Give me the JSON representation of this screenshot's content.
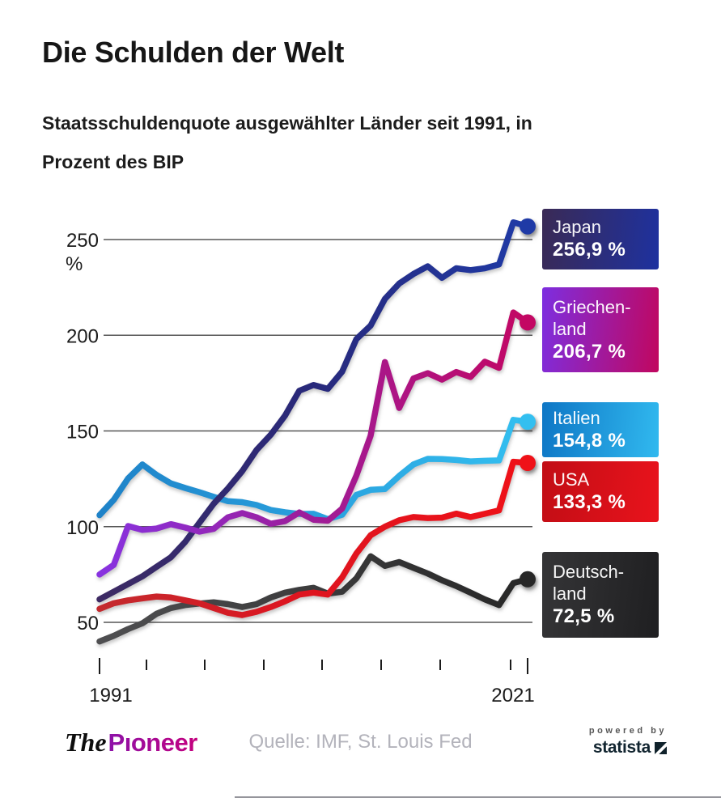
{
  "header": {
    "title": "Die Schulden der Welt",
    "subtitle": "Staatsschuldenquote ausgewählter Länder seit 1991, in\nProzent des BIP"
  },
  "chart_data": {
    "type": "line",
    "title": "Die Schulden der Welt",
    "subtitle": "Staatsschuldenquote ausgewählter Länder seit 1991, in Prozent des BIP",
    "x_start": 1991,
    "x_end": 2021,
    "x_axis": {
      "start_label": "1991",
      "end_label": "2021"
    },
    "y_axis": {
      "unit": "%",
      "ticks": [
        250,
        200,
        150,
        100,
        50
      ],
      "range": [
        35,
        265
      ],
      "grid": true
    },
    "legend_position": "right",
    "series": [
      {
        "id": "japan",
        "name": "Japan",
        "label": "Japan",
        "value_label": "256,9 %",
        "final_value": 256.9,
        "dot_color": "#1f3aa6",
        "box_gradient": [
          "#3a2a55",
          "#1e319f"
        ],
        "gradient_stops": [
          {
            "at": "0%",
            "color": "#3d2a63"
          },
          {
            "at": "50%",
            "color": "#28297b"
          },
          {
            "at": "100%",
            "color": "#1f3aa6"
          }
        ],
        "values": [
          62,
          66,
          70,
          74,
          79,
          84,
          92,
          102,
          112,
          120,
          129,
          140,
          148,
          158,
          171,
          174,
          172,
          181,
          198,
          205,
          219,
          227,
          232,
          236,
          230,
          235,
          234,
          235,
          237,
          259,
          256.9
        ]
      },
      {
        "id": "griechenland",
        "name": "Griechenland",
        "label": "Griechen-\nland",
        "value_label": "206,7 %",
        "final_value": 206.7,
        "dot_color": "#c30763",
        "box_gradient": [
          "#7d2ee0",
          "#c1075f"
        ],
        "gradient_stops": [
          {
            "at": "0%",
            "color": "#8833e0"
          },
          {
            "at": "45%",
            "color": "#9b1f9e"
          },
          {
            "at": "100%",
            "color": "#c30763"
          }
        ],
        "values": [
          75,
          80,
          100.3,
          98.3,
          99,
          101.3,
          99.5,
          97.4,
          98.9,
          104.9,
          107.1,
          104.9,
          101.5,
          102.9,
          107.4,
          103.6,
          103.1,
          109.4,
          126.7,
          147.5,
          186,
          162,
          177.4,
          180.2,
          176.8,
          180.8,
          178.2,
          186.2,
          183,
          211.9,
          206.7
        ]
      },
      {
        "id": "italien",
        "name": "Italien",
        "label": "Italien",
        "value_label": "154,8 %",
        "final_value": 154.8,
        "dot_color": "#33bff0",
        "box_gradient": [
          "#0e76c5",
          "#31b9ef"
        ],
        "gradient_stops": [
          {
            "at": "0%",
            "color": "#1e82c8"
          },
          {
            "at": "50%",
            "color": "#29a0dd"
          },
          {
            "at": "100%",
            "color": "#33bff0"
          }
        ],
        "values": [
          106,
          114,
          125.2,
          132.5,
          127,
          122.6,
          120.2,
          118,
          115.6,
          113.3,
          112.8,
          111.3,
          108.7,
          107.5,
          106.6,
          106.7,
          103.9,
          106.2,
          116.6,
          119.2,
          119.7,
          126.5,
          132.5,
          135.4,
          135.3,
          134.8,
          134.1,
          134.4,
          134.6,
          155.8,
          154.8
        ]
      },
      {
        "id": "usa",
        "name": "USA",
        "label": "USA",
        "value_label": "133,3 %",
        "final_value": 133.3,
        "dot_color": "#ef1118",
        "box_gradient": [
          "#c20d15",
          "#e9131c"
        ],
        "gradient_stops": [
          {
            "at": "0%",
            "color": "#c32a2e"
          },
          {
            "at": "45%",
            "color": "#dd1520"
          },
          {
            "at": "100%",
            "color": "#ef1118"
          }
        ],
        "values": [
          57,
          60,
          61.5,
          62.5,
          63.5,
          63,
          61.5,
          60,
          57.5,
          55,
          53.8,
          55.5,
          58,
          61,
          64.5,
          65.5,
          64.5,
          73.5,
          86,
          95.5,
          100,
          103.3,
          105,
          104.5,
          104.7,
          106.8,
          105,
          106.7,
          108.5,
          133.9,
          133.3
        ]
      },
      {
        "id": "deutschland",
        "name": "Deutschland",
        "label": "Deutsch-\nland",
        "value_label": "72,5 %",
        "final_value": 72.5,
        "dot_color": "#272727",
        "box_gradient": [
          "#353537",
          "#1f1f21"
        ],
        "gradient_stops": [
          {
            "at": "0%",
            "color": "#4f4f51"
          },
          {
            "at": "100%",
            "color": "#272727"
          }
        ],
        "values": [
          40,
          43,
          46.5,
          49.5,
          54.5,
          57.5,
          59,
          59.8,
          60.5,
          59.5,
          58,
          59.5,
          63,
          65.5,
          67,
          68,
          65,
          66,
          73,
          84.5,
          79.5,
          81.5,
          78.5,
          75.5,
          72,
          69,
          65.5,
          62,
          59,
          70.5,
          72.5
        ]
      }
    ]
  },
  "footer": {
    "brand_the": "The",
    "brand_name": "Pıoneer",
    "source": "Quelle: IMF, St. Louis Fed",
    "powered_by": "powered by",
    "statista": "statista"
  }
}
